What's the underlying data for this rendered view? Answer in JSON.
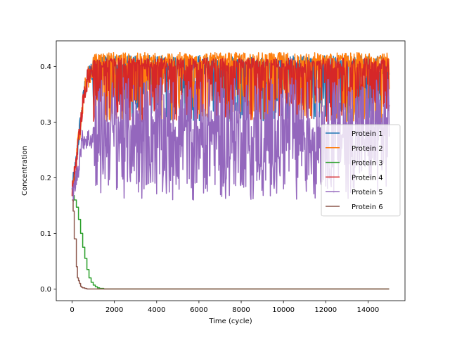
{
  "chart_data": {
    "type": "line",
    "xlabel": "Time (cycle)",
    "ylabel": "Concentration",
    "xlim": [
      -750,
      15750
    ],
    "ylim": [
      -0.021,
      0.446
    ],
    "xticks": [
      0,
      2000,
      4000,
      6000,
      8000,
      10000,
      12000,
      14000
    ],
    "xtick_labels": [
      "0",
      "2000",
      "4000",
      "6000",
      "8000",
      "10000",
      "12000",
      "14000"
    ],
    "yticks": [
      0.0,
      0.1,
      0.2,
      0.3,
      0.4
    ],
    "ytick_labels": [
      "0.0",
      "0.1",
      "0.2",
      "0.3",
      "0.4"
    ],
    "grid": false,
    "legend_position": "center-right",
    "series": [
      {
        "name": "Protein 1",
        "color": "#1f77b4",
        "description_x": [
          0,
          100,
          200,
          300,
          400,
          500,
          600,
          800,
          1000,
          1500,
          15000
        ],
        "values": [
          0.175,
          0.2,
          0.23,
          0.27,
          0.3,
          0.33,
          0.36,
          0.385,
          0.395,
          0.4,
          0.4
        ],
        "noise_high": 0.42,
        "noise_low": 0.3
      },
      {
        "name": "Protein 2",
        "color": "#ff7f0e",
        "description_x": [
          0,
          100,
          200,
          300,
          400,
          500,
          600,
          800,
          1000,
          1500,
          15000
        ],
        "values": [
          0.175,
          0.2,
          0.23,
          0.27,
          0.3,
          0.33,
          0.36,
          0.385,
          0.395,
          0.4,
          0.4
        ],
        "noise_high": 0.425,
        "noise_low": 0.3
      },
      {
        "name": "Protein 3",
        "color": "#2ca02c",
        "x": [
          0,
          100,
          200,
          300,
          400,
          500,
          600,
          700,
          800,
          900,
          1000,
          1100,
          1200,
          1300,
          1500,
          15000
        ],
        "values": [
          0.168,
          0.16,
          0.147,
          0.125,
          0.1,
          0.075,
          0.055,
          0.035,
          0.02,
          0.012,
          0.007,
          0.004,
          0.002,
          0.001,
          0.0,
          0.0
        ]
      },
      {
        "name": "Protein 4",
        "color": "#d62728",
        "description_x": [
          0,
          100,
          200,
          300,
          400,
          500,
          600,
          800,
          1000,
          1500,
          15000
        ],
        "values": [
          0.175,
          0.2,
          0.23,
          0.27,
          0.3,
          0.33,
          0.36,
          0.385,
          0.395,
          0.4,
          0.4
        ],
        "noise_high": 0.415,
        "noise_low": 0.3
      },
      {
        "name": "Protein 5",
        "color": "#9467bd",
        "description_x": [
          0,
          100,
          200,
          300,
          400,
          500,
          800,
          1000,
          15000
        ],
        "values": [
          0.17,
          0.18,
          0.2,
          0.22,
          0.25,
          0.27,
          0.27,
          0.27,
          0.27
        ],
        "noise_high": 0.38,
        "noise_low": 0.18
      },
      {
        "name": "Protein 6",
        "color": "#8c564b",
        "x": [
          0,
          50,
          100,
          150,
          200,
          250,
          300,
          350,
          400,
          450,
          500,
          600,
          700,
          15000
        ],
        "values": [
          0.16,
          0.14,
          0.09,
          0.09,
          0.04,
          0.02,
          0.015,
          0.01,
          0.005,
          0.003,
          0.002,
          0.001,
          0.0,
          0.0
        ]
      }
    ]
  }
}
